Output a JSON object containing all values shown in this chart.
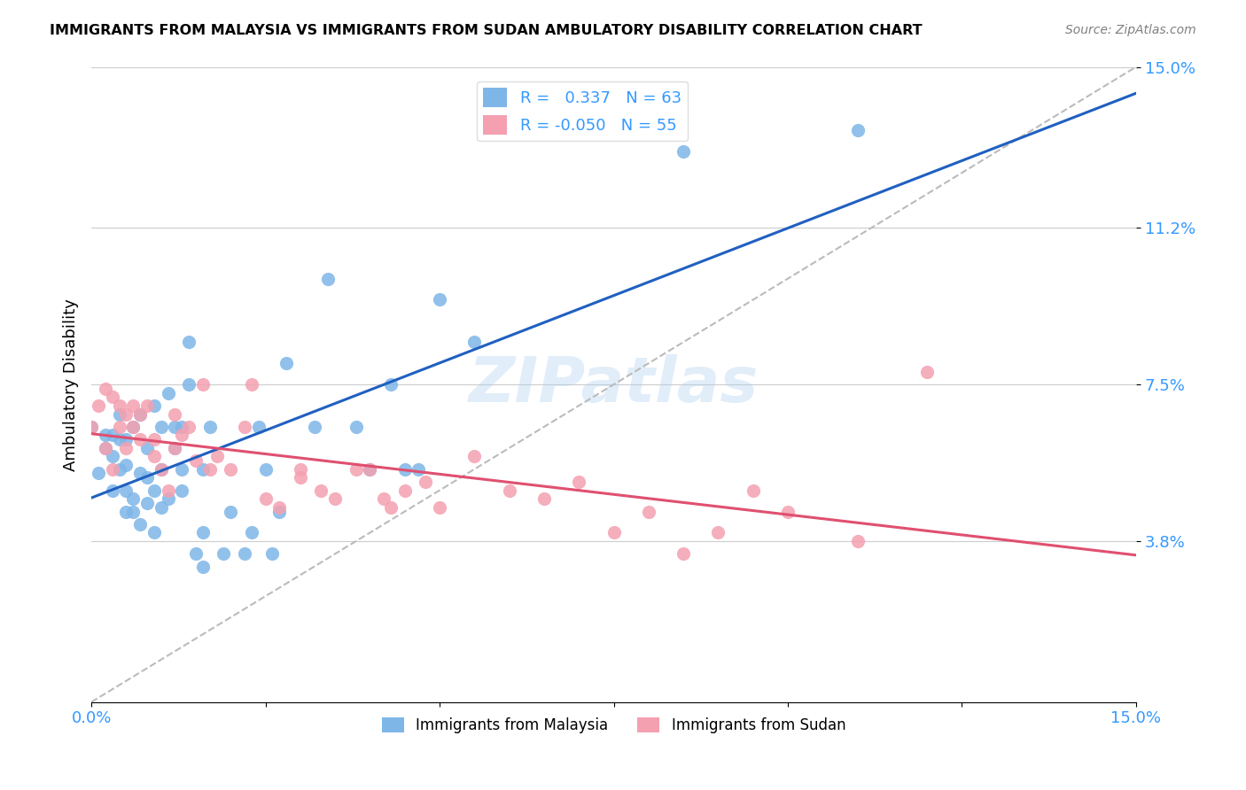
{
  "title": "IMMIGRANTS FROM MALAYSIA VS IMMIGRANTS FROM SUDAN AMBULATORY DISABILITY CORRELATION CHART",
  "source": "Source: ZipAtlas.com",
  "xlabel": "",
  "ylabel": "Ambulatory Disability",
  "xmin": 0.0,
  "xmax": 0.15,
  "ymin": 0.0,
  "ymax": 0.15,
  "yticks": [
    0.038,
    0.075,
    0.112,
    0.15
  ],
  "ytick_labels": [
    "3.8%",
    "7.5%",
    "11.2%",
    "15.0%"
  ],
  "xticks": [
    0.0,
    0.025,
    0.05,
    0.075,
    0.1,
    0.125,
    0.15
  ],
  "xtick_labels": [
    "0.0%",
    "",
    "",
    "",
    "",
    "",
    "15.0%"
  ],
  "r_malaysia": 0.337,
  "n_malaysia": 63,
  "r_sudan": -0.05,
  "n_sudan": 55,
  "color_malaysia": "#7EB6E8",
  "color_sudan": "#F4A0B0",
  "trendline_color_malaysia": "#2060C0",
  "trendline_color_sudan": "#E05070",
  "dashed_line_color": "#BBBBBB",
  "watermark": "ZIPatlas",
  "malaysia_x": [
    0.0,
    0.001,
    0.002,
    0.002,
    0.003,
    0.003,
    0.003,
    0.004,
    0.004,
    0.004,
    0.005,
    0.005,
    0.005,
    0.005,
    0.006,
    0.006,
    0.006,
    0.007,
    0.007,
    0.007,
    0.008,
    0.008,
    0.008,
    0.009,
    0.009,
    0.009,
    0.01,
    0.01,
    0.01,
    0.011,
    0.011,
    0.012,
    0.012,
    0.013,
    0.013,
    0.013,
    0.014,
    0.014,
    0.015,
    0.016,
    0.016,
    0.016,
    0.017,
    0.019,
    0.02,
    0.022,
    0.023,
    0.024,
    0.025,
    0.026,
    0.027,
    0.028,
    0.032,
    0.034,
    0.038,
    0.04,
    0.043,
    0.045,
    0.047,
    0.05,
    0.055,
    0.085,
    0.11
  ],
  "malaysia_y": [
    0.065,
    0.054,
    0.06,
    0.063,
    0.05,
    0.058,
    0.063,
    0.055,
    0.062,
    0.068,
    0.045,
    0.05,
    0.056,
    0.062,
    0.045,
    0.048,
    0.065,
    0.042,
    0.054,
    0.068,
    0.047,
    0.053,
    0.06,
    0.04,
    0.05,
    0.07,
    0.046,
    0.055,
    0.065,
    0.048,
    0.073,
    0.06,
    0.065,
    0.05,
    0.055,
    0.065,
    0.075,
    0.085,
    0.035,
    0.032,
    0.04,
    0.055,
    0.065,
    0.035,
    0.045,
    0.035,
    0.04,
    0.065,
    0.055,
    0.035,
    0.045,
    0.08,
    0.065,
    0.1,
    0.065,
    0.055,
    0.075,
    0.055,
    0.055,
    0.095,
    0.085,
    0.13,
    0.135
  ],
  "sudan_x": [
    0.0,
    0.001,
    0.002,
    0.002,
    0.003,
    0.003,
    0.004,
    0.004,
    0.005,
    0.005,
    0.006,
    0.006,
    0.007,
    0.007,
    0.008,
    0.009,
    0.009,
    0.01,
    0.011,
    0.012,
    0.012,
    0.013,
    0.014,
    0.015,
    0.016,
    0.017,
    0.018,
    0.02,
    0.022,
    0.023,
    0.025,
    0.027,
    0.03,
    0.03,
    0.033,
    0.035,
    0.038,
    0.04,
    0.042,
    0.043,
    0.045,
    0.048,
    0.05,
    0.055,
    0.06,
    0.065,
    0.07,
    0.075,
    0.08,
    0.085,
    0.09,
    0.095,
    0.1,
    0.11,
    0.12
  ],
  "sudan_y": [
    0.065,
    0.07,
    0.06,
    0.074,
    0.055,
    0.072,
    0.065,
    0.07,
    0.06,
    0.068,
    0.065,
    0.07,
    0.062,
    0.068,
    0.07,
    0.058,
    0.062,
    0.055,
    0.05,
    0.06,
    0.068,
    0.063,
    0.065,
    0.057,
    0.075,
    0.055,
    0.058,
    0.055,
    0.065,
    0.075,
    0.048,
    0.046,
    0.053,
    0.055,
    0.05,
    0.048,
    0.055,
    0.055,
    0.048,
    0.046,
    0.05,
    0.052,
    0.046,
    0.058,
    0.05,
    0.048,
    0.052,
    0.04,
    0.045,
    0.035,
    0.04,
    0.05,
    0.045,
    0.038,
    0.078
  ]
}
